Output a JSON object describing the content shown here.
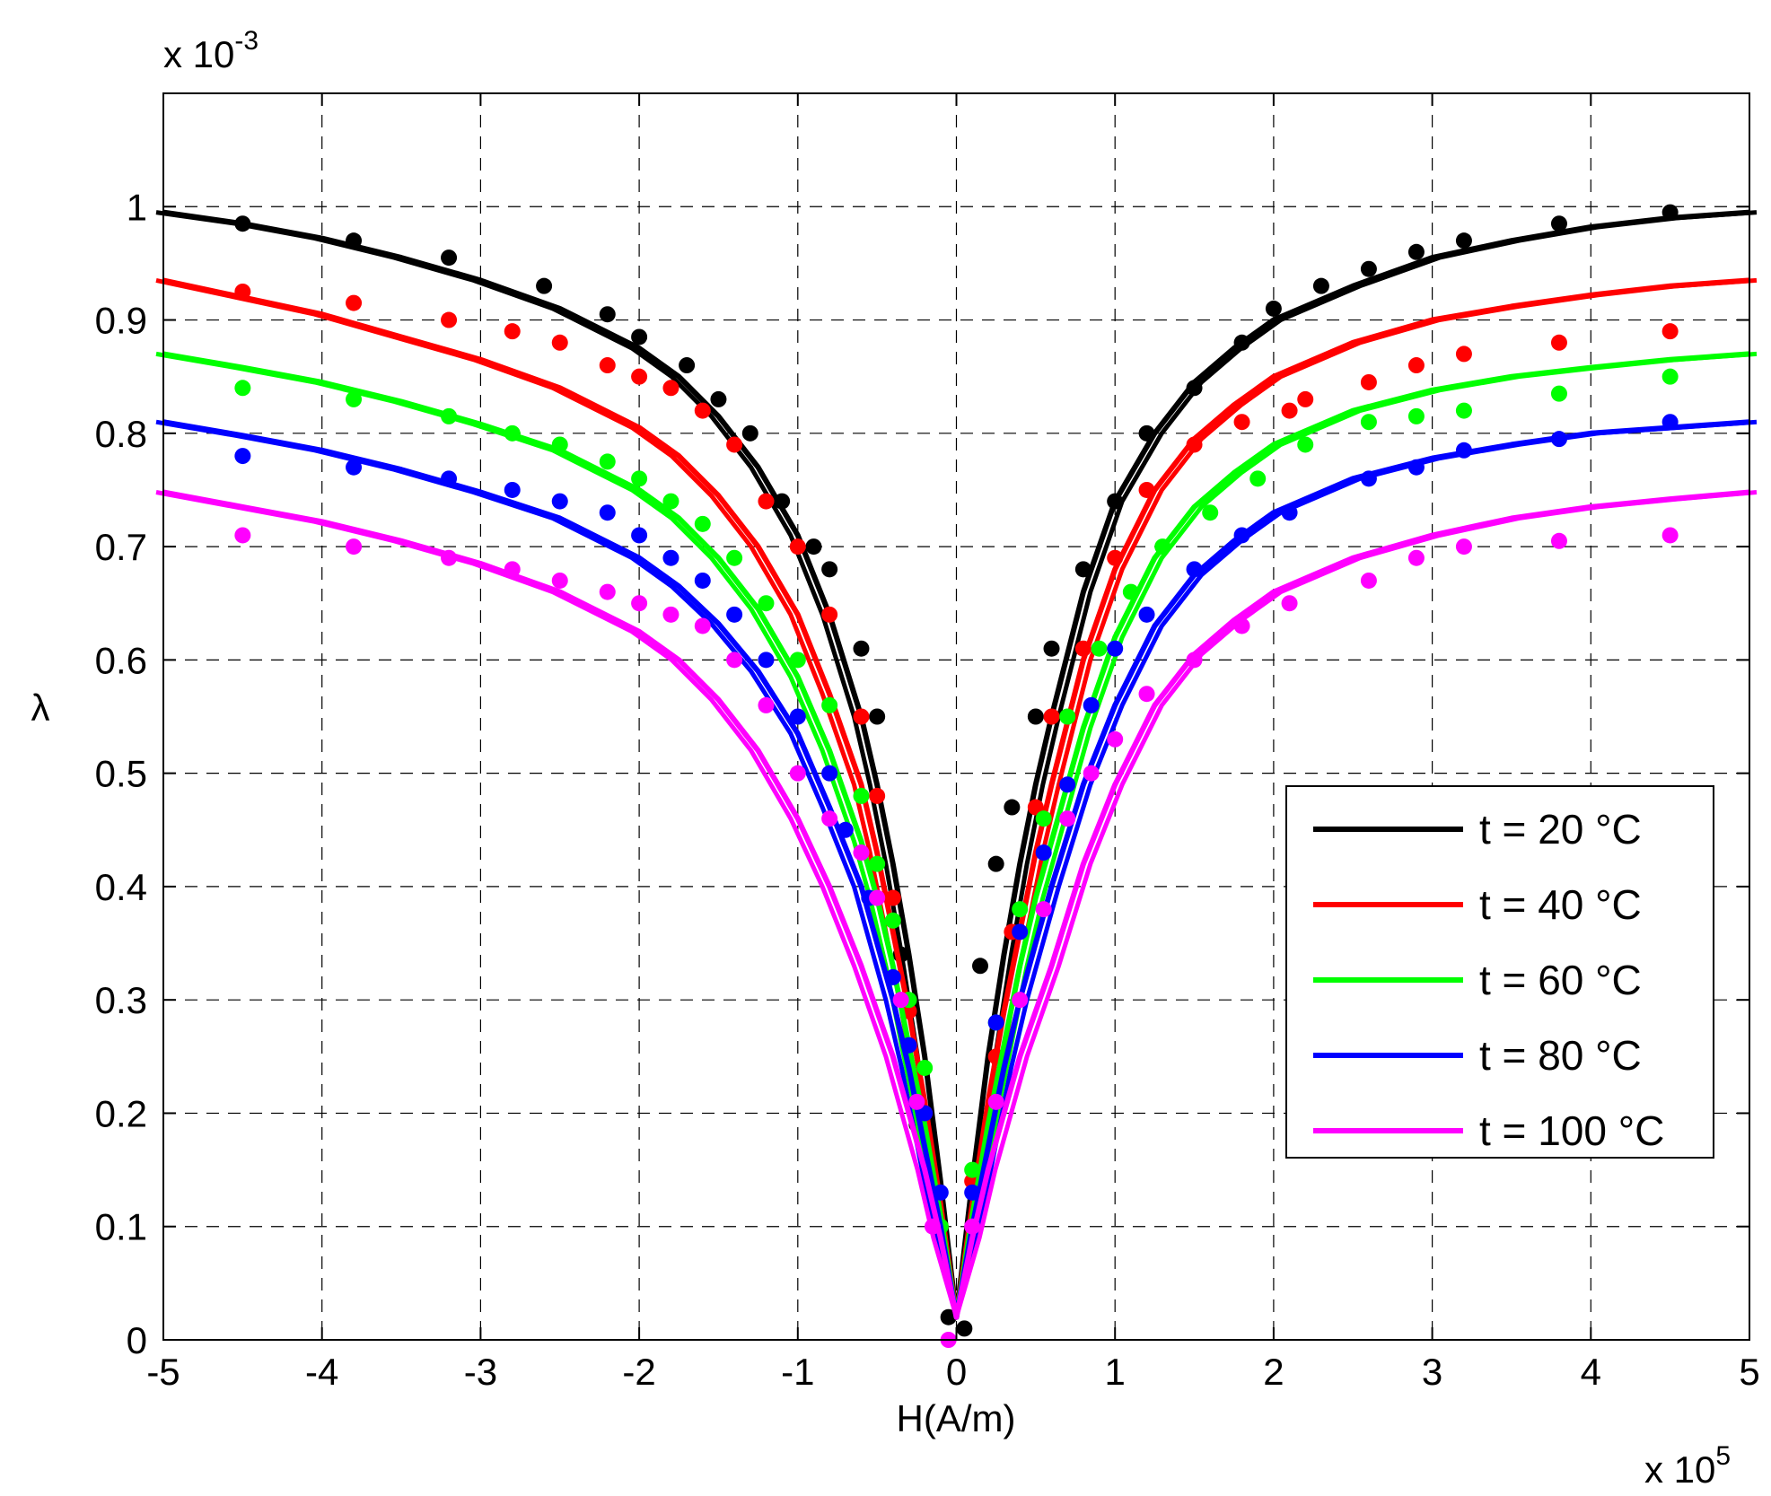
{
  "chart_data": {
    "type": "line",
    "title": "",
    "xlabel": "H(A/m)",
    "ylabel": "λ",
    "x_multiplier_text": {
      "base": "x 10",
      "exp": "5"
    },
    "y_multiplier_text": {
      "base": "x 10",
      "exp": "-3"
    },
    "xlim": [
      -5,
      5
    ],
    "ylim": [
      0,
      1.1
    ],
    "x_ticks": [
      -5,
      -4,
      -3,
      -2,
      -1,
      0,
      1,
      2,
      3,
      4,
      5
    ],
    "x_tick_labels": [
      "-5",
      "-4",
      "-3",
      "-2",
      "-1",
      "0",
      "1",
      "2",
      "3",
      "4",
      "5"
    ],
    "y_ticks": [
      0,
      0.1,
      0.2,
      0.3,
      0.4,
      0.5,
      0.6,
      0.7,
      0.8,
      0.9,
      1
    ],
    "y_tick_labels": [
      "0",
      "0.1",
      "0.2",
      "0.3",
      "0.4",
      "0.5",
      "0.6",
      "0.7",
      "0.8",
      "0.9",
      "1"
    ],
    "grid": true,
    "legend_position": "bottom-right",
    "series": [
      {
        "name": "t = 20 °C",
        "color": "#000000",
        "line": {
          "x": [
            -5,
            -4.5,
            -4,
            -3.5,
            -3,
            -2.5,
            -2,
            -1.75,
            -1.5,
            -1.25,
            -1,
            -0.8,
            -0.6,
            -0.5,
            -0.4,
            -0.3,
            -0.2,
            -0.1,
            0,
            0.1,
            0.2,
            0.3,
            0.4,
            0.5,
            0.6,
            0.8,
            1,
            1.25,
            1.5,
            1.75,
            2,
            2.5,
            3,
            3.5,
            4,
            4.5,
            5
          ],
          "y": [
            0.995,
            0.985,
            0.972,
            0.955,
            0.935,
            0.91,
            0.875,
            0.85,
            0.815,
            0.77,
            0.71,
            0.64,
            0.55,
            0.49,
            0.42,
            0.34,
            0.25,
            0.14,
            0.02,
            0.14,
            0.25,
            0.34,
            0.42,
            0.49,
            0.55,
            0.66,
            0.74,
            0.8,
            0.845,
            0.875,
            0.9,
            0.93,
            0.955,
            0.97,
            0.982,
            0.99,
            0.995
          ]
        },
        "points": {
          "x": [
            -4.5,
            -3.8,
            -3.2,
            -2.6,
            -2.2,
            -2.0,
            -1.7,
            -1.5,
            -1.3,
            -1.1,
            -0.9,
            -0.8,
            -0.6,
            -0.5,
            -0.35,
            -0.25,
            -0.15,
            -0.05,
            0.05,
            0.15,
            0.25,
            0.35,
            0.5,
            0.6,
            0.8,
            1.0,
            1.2,
            1.5,
            1.8,
            2.0,
            2.3,
            2.6,
            2.9,
            3.2,
            3.8,
            4.5
          ],
          "y": [
            0.985,
            0.97,
            0.955,
            0.93,
            0.905,
            0.885,
            0.86,
            0.83,
            0.8,
            0.74,
            0.7,
            0.68,
            0.61,
            0.55,
            0.34,
            0.19,
            0.13,
            0.02,
            0.01,
            0.33,
            0.42,
            0.47,
            0.55,
            0.61,
            0.68,
            0.74,
            0.8,
            0.84,
            0.88,
            0.91,
            0.93,
            0.945,
            0.96,
            0.97,
            0.985,
            0.995
          ]
        }
      },
      {
        "name": "t = 40 °C",
        "color": "#ff0000",
        "line": {
          "x": [
            -5,
            -4.5,
            -4,
            -3.5,
            -3,
            -2.5,
            -2,
            -1.75,
            -1.5,
            -1.25,
            -1,
            -0.8,
            -0.6,
            -0.5,
            -0.4,
            -0.3,
            -0.2,
            -0.1,
            0,
            0.1,
            0.2,
            0.3,
            0.4,
            0.5,
            0.6,
            0.8,
            1,
            1.25,
            1.5,
            1.75,
            2,
            2.5,
            3,
            3.5,
            4,
            4.5,
            5
          ],
          "y": [
            0.935,
            0.92,
            0.905,
            0.885,
            0.865,
            0.84,
            0.805,
            0.78,
            0.745,
            0.7,
            0.64,
            0.57,
            0.49,
            0.43,
            0.36,
            0.29,
            0.21,
            0.12,
            0.02,
            0.12,
            0.21,
            0.29,
            0.36,
            0.43,
            0.49,
            0.6,
            0.68,
            0.75,
            0.795,
            0.825,
            0.85,
            0.88,
            0.9,
            0.912,
            0.922,
            0.93,
            0.935
          ]
        },
        "points": {
          "x": [
            -4.5,
            -3.8,
            -3.2,
            -2.8,
            -2.5,
            -2.2,
            -2.0,
            -1.8,
            -1.6,
            -1.4,
            -1.2,
            -1.0,
            -0.8,
            -0.6,
            -0.5,
            -0.4,
            -0.3,
            -0.2,
            -0.1,
            0.1,
            0.25,
            0.35,
            0.5,
            0.6,
            0.8,
            1.0,
            1.2,
            1.5,
            1.8,
            2.1,
            2.2,
            2.6,
            2.9,
            3.2,
            3.8,
            4.5
          ],
          "y": [
            0.925,
            0.915,
            0.9,
            0.89,
            0.88,
            0.86,
            0.85,
            0.84,
            0.82,
            0.79,
            0.74,
            0.7,
            0.64,
            0.55,
            0.48,
            0.39,
            0.29,
            0.2,
            0.1,
            0.14,
            0.25,
            0.36,
            0.47,
            0.55,
            0.61,
            0.69,
            0.75,
            0.79,
            0.81,
            0.82,
            0.83,
            0.845,
            0.86,
            0.87,
            0.88,
            0.89
          ]
        }
      },
      {
        "name": "t = 60 °C",
        "color": "#00ff00",
        "line": {
          "x": [
            -5,
            -4.5,
            -4,
            -3.5,
            -3,
            -2.5,
            -2,
            -1.75,
            -1.5,
            -1.25,
            -1,
            -0.8,
            -0.6,
            -0.5,
            -0.4,
            -0.3,
            -0.2,
            -0.1,
            0,
            0.1,
            0.2,
            0.3,
            0.4,
            0.5,
            0.6,
            0.8,
            1,
            1.25,
            1.5,
            1.75,
            2,
            2.5,
            3,
            3.5,
            4,
            4.5,
            5
          ],
          "y": [
            0.87,
            0.858,
            0.845,
            0.828,
            0.808,
            0.785,
            0.75,
            0.725,
            0.69,
            0.645,
            0.585,
            0.52,
            0.44,
            0.39,
            0.33,
            0.26,
            0.19,
            0.11,
            0.02,
            0.11,
            0.19,
            0.26,
            0.33,
            0.39,
            0.44,
            0.54,
            0.62,
            0.69,
            0.735,
            0.765,
            0.79,
            0.82,
            0.838,
            0.85,
            0.858,
            0.865,
            0.87
          ]
        },
        "points": {
          "x": [
            -4.5,
            -3.8,
            -3.2,
            -2.8,
            -2.5,
            -2.2,
            -2.0,
            -1.8,
            -1.6,
            -1.4,
            -1.2,
            -1.0,
            -0.8,
            -0.6,
            -0.5,
            -0.4,
            -0.3,
            -0.2,
            -0.1,
            0.1,
            0.25,
            0.4,
            0.55,
            0.7,
            0.9,
            1.1,
            1.3,
            1.6,
            1.9,
            2.2,
            2.6,
            2.9,
            3.2,
            3.8,
            4.5
          ],
          "y": [
            0.84,
            0.83,
            0.815,
            0.8,
            0.79,
            0.775,
            0.76,
            0.74,
            0.72,
            0.69,
            0.65,
            0.6,
            0.56,
            0.48,
            0.42,
            0.37,
            0.3,
            0.24,
            0.1,
            0.15,
            0.28,
            0.38,
            0.46,
            0.55,
            0.61,
            0.66,
            0.7,
            0.73,
            0.76,
            0.79,
            0.81,
            0.815,
            0.82,
            0.835,
            0.85
          ]
        }
      },
      {
        "name": "t = 80 °C",
        "color": "#0000ff",
        "line": {
          "x": [
            -5,
            -4.5,
            -4,
            -3.5,
            -3,
            -2.5,
            -2,
            -1.75,
            -1.5,
            -1.25,
            -1,
            -0.8,
            -0.6,
            -0.5,
            -0.4,
            -0.3,
            -0.2,
            -0.1,
            0,
            0.1,
            0.2,
            0.3,
            0.4,
            0.5,
            0.6,
            0.8,
            1,
            1.25,
            1.5,
            1.75,
            2,
            2.5,
            3,
            3.5,
            4,
            4.5,
            5
          ],
          "y": [
            0.81,
            0.798,
            0.785,
            0.768,
            0.748,
            0.725,
            0.69,
            0.665,
            0.632,
            0.59,
            0.535,
            0.47,
            0.4,
            0.35,
            0.3,
            0.24,
            0.17,
            0.1,
            0.02,
            0.1,
            0.17,
            0.24,
            0.3,
            0.35,
            0.4,
            0.49,
            0.56,
            0.63,
            0.675,
            0.705,
            0.73,
            0.76,
            0.778,
            0.79,
            0.8,
            0.805,
            0.81
          ]
        },
        "points": {
          "x": [
            -4.5,
            -3.8,
            -3.2,
            -2.8,
            -2.5,
            -2.2,
            -2.0,
            -1.8,
            -1.6,
            -1.4,
            -1.2,
            -1.0,
            -0.8,
            -0.7,
            -0.55,
            -0.4,
            -0.3,
            -0.2,
            -0.1,
            0.1,
            0.25,
            0.4,
            0.55,
            0.7,
            0.85,
            1.0,
            1.2,
            1.5,
            1.8,
            2.1,
            2.6,
            2.9,
            3.2,
            3.8,
            4.5
          ],
          "y": [
            0.78,
            0.77,
            0.76,
            0.75,
            0.74,
            0.73,
            0.71,
            0.69,
            0.67,
            0.64,
            0.6,
            0.55,
            0.5,
            0.45,
            0.39,
            0.32,
            0.26,
            0.2,
            0.13,
            0.13,
            0.28,
            0.36,
            0.43,
            0.49,
            0.56,
            0.61,
            0.64,
            0.68,
            0.71,
            0.73,
            0.76,
            0.77,
            0.785,
            0.795,
            0.81
          ]
        }
      },
      {
        "name": "t = 100 °C",
        "color": "#ff00ff",
        "line": {
          "x": [
            -5,
            -4.5,
            -4,
            -3.5,
            -3,
            -2.5,
            -2,
            -1.75,
            -1.5,
            -1.25,
            -1,
            -0.8,
            -0.6,
            -0.5,
            -0.4,
            -0.3,
            -0.2,
            -0.1,
            0,
            0.1,
            0.2,
            0.3,
            0.4,
            0.5,
            0.6,
            0.8,
            1,
            1.25,
            1.5,
            1.75,
            2,
            2.5,
            3,
            3.5,
            4,
            4.5,
            5
          ],
          "y": [
            0.748,
            0.735,
            0.722,
            0.705,
            0.685,
            0.66,
            0.625,
            0.6,
            0.565,
            0.52,
            0.46,
            0.4,
            0.33,
            0.29,
            0.25,
            0.2,
            0.15,
            0.09,
            0.02,
            0.09,
            0.15,
            0.2,
            0.25,
            0.29,
            0.33,
            0.42,
            0.49,
            0.56,
            0.605,
            0.635,
            0.66,
            0.69,
            0.71,
            0.725,
            0.735,
            0.742,
            0.748
          ]
        },
        "points": {
          "x": [
            -4.5,
            -3.8,
            -3.2,
            -2.8,
            -2.5,
            -2.2,
            -2.0,
            -1.8,
            -1.6,
            -1.4,
            -1.2,
            -1.0,
            -0.8,
            -0.6,
            -0.5,
            -0.35,
            -0.25,
            -0.15,
            -0.05,
            0.1,
            0.25,
            0.4,
            0.55,
            0.7,
            0.85,
            1.0,
            1.2,
            1.5,
            1.8,
            2.1,
            2.6,
            2.9,
            3.2,
            3.8,
            4.5
          ],
          "y": [
            0.71,
            0.7,
            0.69,
            0.68,
            0.67,
            0.66,
            0.65,
            0.64,
            0.63,
            0.6,
            0.56,
            0.5,
            0.46,
            0.43,
            0.39,
            0.3,
            0.21,
            0.1,
            0.0,
            0.1,
            0.21,
            0.3,
            0.38,
            0.46,
            0.5,
            0.53,
            0.57,
            0.6,
            0.63,
            0.65,
            0.67,
            0.69,
            0.7,
            0.705,
            0.71
          ]
        }
      }
    ]
  }
}
